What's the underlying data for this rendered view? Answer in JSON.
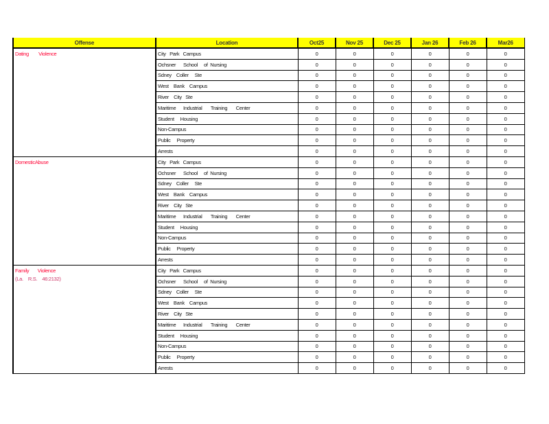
{
  "headers": {
    "offense": "Offense",
    "location": "Location",
    "months": [
      "Oct25",
      "Nov   25",
      "Dec   25",
      "Jan   26",
      "Feb   26",
      "Mar26"
    ]
  },
  "locations": [
    "City   Park   Campus",
    "Ochsner      School     of  Nursing",
    "Sdney    Coller     Ste",
    "West    Bank    Campus",
    "River    City   Ste",
    "Maritime      Industrial       Training       Center",
    "Student     Housing",
    "Non-Campus",
    "Public     Property",
    "Arrests"
  ],
  "offenses": [
    {
      "name": "Dating        Violence",
      "sub": "",
      "values": [
        [
          0,
          0,
          0,
          0,
          0,
          0
        ],
        [
          0,
          0,
          0,
          0,
          0,
          0
        ],
        [
          0,
          0,
          0,
          0,
          0,
          0
        ],
        [
          0,
          0,
          0,
          0,
          0,
          0
        ],
        [
          0,
          0,
          0,
          0,
          0,
          0
        ],
        [
          0,
          0,
          0,
          0,
          0,
          0
        ],
        [
          0,
          0,
          0,
          0,
          0,
          0
        ],
        [
          0,
          0,
          0,
          0,
          0,
          0
        ],
        [
          0,
          0,
          0,
          0,
          0,
          0
        ],
        [
          0,
          0,
          0,
          0,
          0,
          0
        ]
      ]
    },
    {
      "name": "DomesticAbuse",
      "sub": "",
      "values": [
        [
          0,
          0,
          0,
          0,
          0,
          0
        ],
        [
          0,
          0,
          0,
          0,
          0,
          0
        ],
        [
          0,
          0,
          0,
          0,
          0,
          0
        ],
        [
          0,
          0,
          0,
          0,
          0,
          0
        ],
        [
          0,
          0,
          0,
          0,
          0,
          0
        ],
        [
          0,
          0,
          0,
          0,
          0,
          0
        ],
        [
          0,
          0,
          0,
          0,
          0,
          0
        ],
        [
          0,
          0,
          0,
          0,
          0,
          0
        ],
        [
          0,
          0,
          0,
          0,
          0,
          0
        ],
        [
          0,
          0,
          0,
          0,
          0,
          0
        ]
      ]
    },
    {
      "name": "Family       Violence",
      "sub": "(La.    R.S.    46:2132)",
      "values": [
        [
          0,
          0,
          0,
          0,
          0,
          0
        ],
        [
          0,
          0,
          0,
          0,
          0,
          0
        ],
        [
          0,
          0,
          0,
          0,
          0,
          0
        ],
        [
          0,
          0,
          0,
          0,
          0,
          0
        ],
        [
          0,
          0,
          0,
          0,
          0,
          0
        ],
        [
          0,
          0,
          0,
          0,
          0,
          0
        ],
        [
          0,
          0,
          0,
          0,
          0,
          0
        ],
        [
          0,
          0,
          0,
          0,
          0,
          0
        ],
        [
          0,
          0,
          0,
          0,
          0,
          0
        ],
        [
          0,
          0,
          0,
          0,
          0,
          0
        ]
      ]
    }
  ],
  "colors": {
    "header_bg": "#ffff00",
    "offense_text": "#ff0033"
  }
}
